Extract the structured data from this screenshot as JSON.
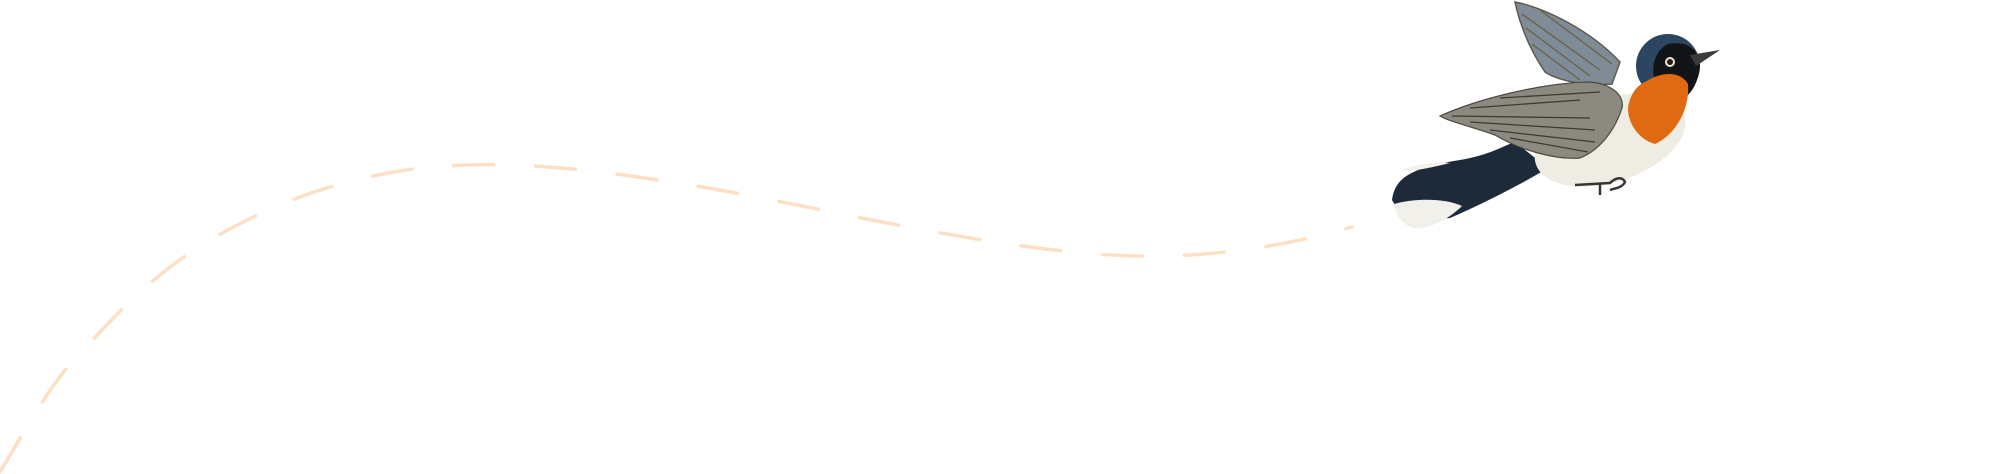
{
  "colors": {
    "background": "#ffffff",
    "flight_path": "#fde0c4",
    "bird_orange": "#e06a12",
    "bird_navy": "#1f3147",
    "bird_white": "#efece4",
    "bird_wing": "#85857c"
  },
  "illustration": {
    "subject": "bird-icon",
    "path_style": "dashed"
  }
}
